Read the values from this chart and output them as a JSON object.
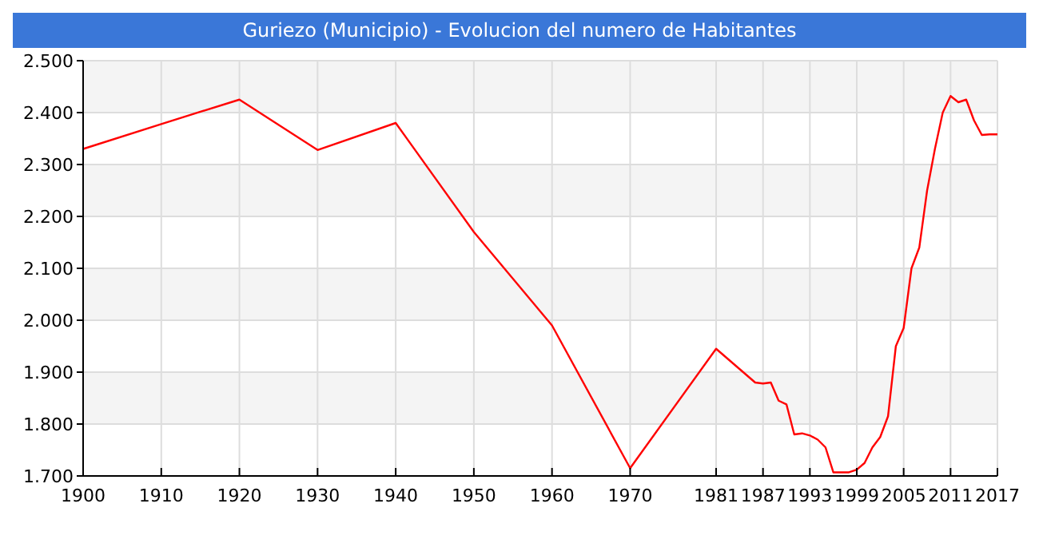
{
  "chart_data": {
    "type": "line",
    "title": "Guriezo (Municipio) - Evolucion del numero de Habitantes",
    "x": [
      1900,
      1910,
      1920,
      1930,
      1940,
      1950,
      1960,
      1970,
      1981,
      1986,
      1987,
      1988,
      1989,
      1990,
      1991,
      1992,
      1993,
      1994,
      1995,
      1996,
      1997,
      1998,
      1999,
      2000,
      2001,
      2002,
      2003,
      2004,
      2005,
      2006,
      2007,
      2008,
      2009,
      2010,
      2011,
      2012,
      2013,
      2014,
      2015,
      2016,
      2017
    ],
    "series": [
      {
        "color": "#ff0000",
        "values": [
          2330,
          2378,
          2425,
          2328,
          2380,
          2170,
          1990,
          1715,
          1945,
          1880,
          1878,
          1880,
          1845,
          1838,
          1780,
          1782,
          1778,
          1770,
          1755,
          1707,
          1707,
          1707,
          1712,
          1725,
          1755,
          1775,
          1815,
          1950,
          1985,
          2100,
          2140,
          2250,
          2330,
          2400,
          2432,
          2420,
          2425,
          2385,
          2357,
          2358,
          2358
        ]
      }
    ],
    "xlim": [
      1900,
      2017
    ],
    "xticks": [
      1900,
      1910,
      1920,
      1930,
      1940,
      1950,
      1960,
      1970,
      1981,
      1987,
      1993,
      1999,
      2005,
      2011,
      2017
    ],
    "ylim": [
      1700,
      2500
    ],
    "yticks": [
      {
        "value": 1700,
        "label": "1.700"
      },
      {
        "value": 1800,
        "label": "1.800"
      },
      {
        "value": 1900,
        "label": "1.900"
      },
      {
        "value": 2000,
        "label": "2.000"
      },
      {
        "value": 2100,
        "label": "2.100"
      },
      {
        "value": 2200,
        "label": "2.200"
      },
      {
        "value": 2300,
        "label": "2.300"
      },
      {
        "value": 2400,
        "label": "2.400"
      },
      {
        "value": 2500,
        "label": "2.500"
      }
    ],
    "grid": true,
    "marker": "none",
    "line_style": "solid"
  }
}
